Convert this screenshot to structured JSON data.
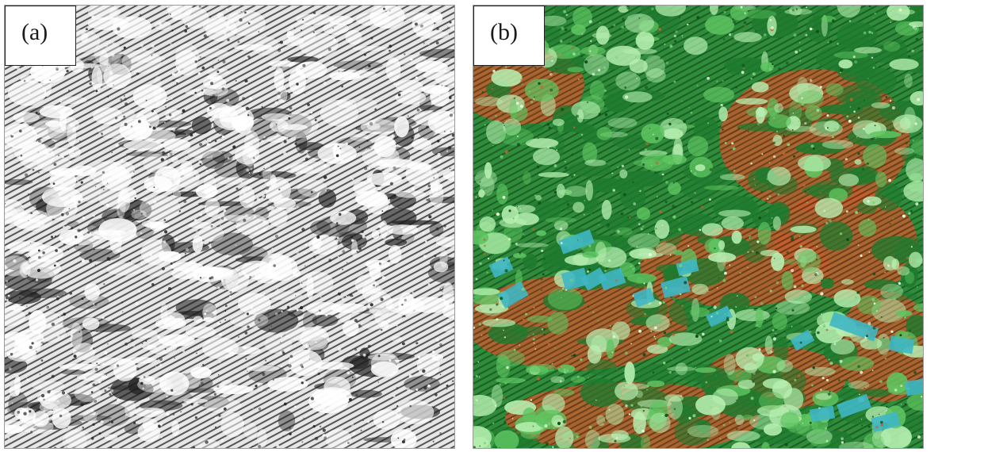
{
  "figure": {
    "panels": [
      {
        "label": "(a)",
        "description_name": "grayscale-point-cloud"
      },
      {
        "label": "(b)",
        "description_name": "classified-color-point-cloud"
      }
    ]
  },
  "colors": {
    "background": "#ffffff",
    "panel_a_base": "#d9d9d9",
    "panel_a_dark": "#1e1e1e",
    "panel_a_light": "#ffffff",
    "panel_b_vegetation_dark": "#1f7a2e",
    "panel_b_vegetation_light": "#b7f0b2",
    "panel_b_ground": "#b5552a",
    "panel_b_building": "#3fb7c4"
  }
}
